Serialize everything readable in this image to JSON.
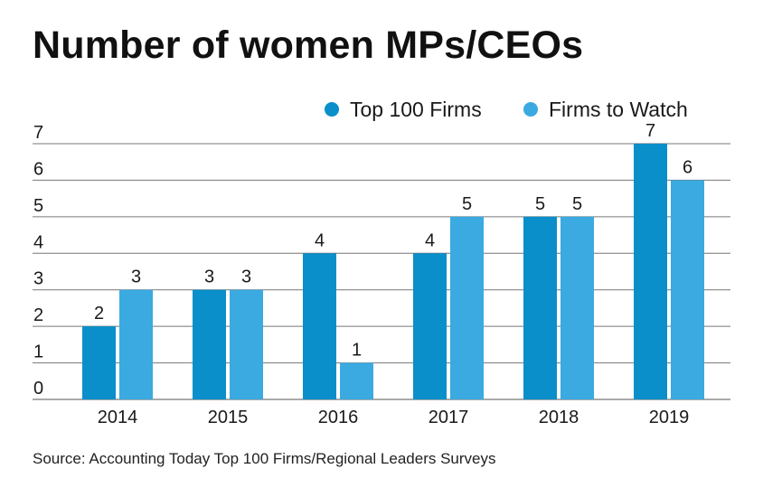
{
  "title": "Number of women MPs/CEOs",
  "source": "Source: Accounting Today Top 100 Firms/Regional Leaders Surveys",
  "colors": {
    "top100": "#0a8fca",
    "watch": "#3aaae0",
    "grid": "#777777",
    "text": "#1a1a1a"
  },
  "chart_data": {
    "type": "bar",
    "title": "Number of women MPs/CEOs",
    "categories": [
      "2014",
      "2015",
      "2016",
      "2017",
      "2018",
      "2019"
    ],
    "series": [
      {
        "name": "Top 100 Firms",
        "values": [
          2,
          3,
          4,
          4,
          5,
          7
        ]
      },
      {
        "name": "Firms to Watch",
        "values": [
          3,
          3,
          1,
          5,
          5,
          6
        ]
      }
    ],
    "yticks": [
      "0",
      "1",
      "2",
      "3",
      "4",
      "5",
      "6",
      "7"
    ],
    "ylim": [
      0,
      7
    ],
    "xlabel": "",
    "ylabel": "",
    "grid": true,
    "legend": "top-right"
  }
}
